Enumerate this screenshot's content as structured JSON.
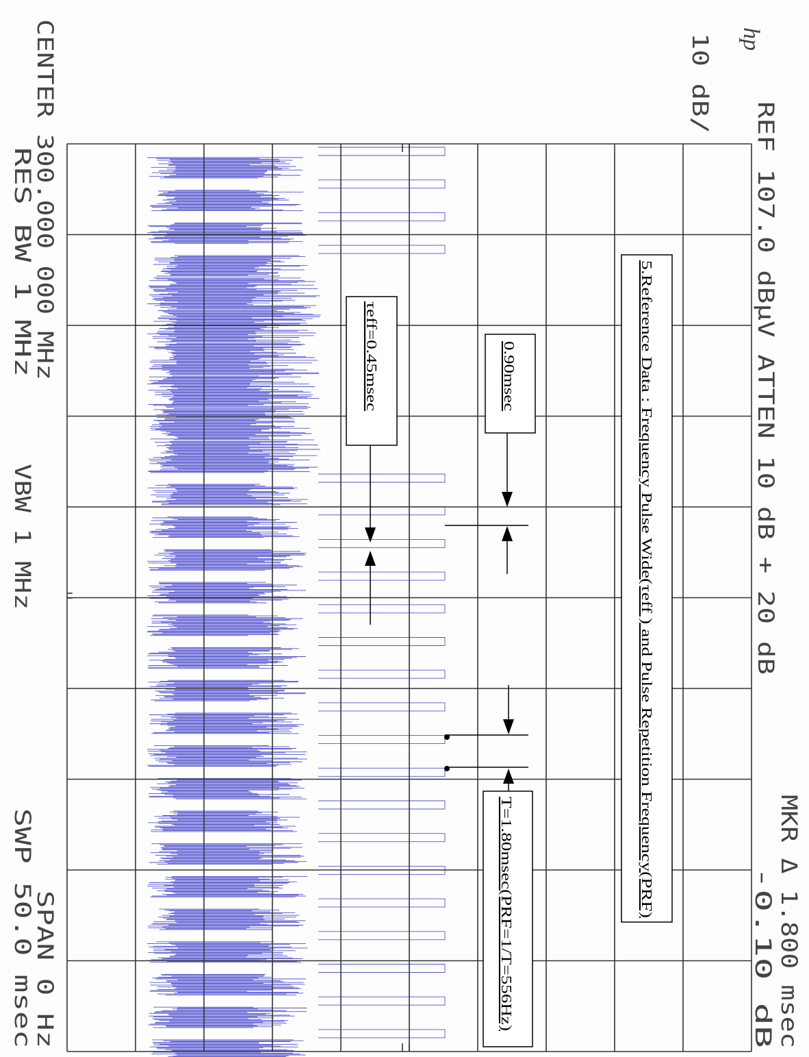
{
  "header": {
    "logo": "hp",
    "scale": "10 dB/",
    "reference": "REF 107.0 dBµV ATTEN 10 dB + 20 dB",
    "marker": "MKR Δ 1.800 msec",
    "marker_level": "-0.10 dB"
  },
  "footer": {
    "center": "CENTER 300.000 000 MHz",
    "res_bw": "RES BW 1 MHz",
    "vbw": "VBW 1 MHz",
    "span": "SPAN 0 Hz",
    "sweep": "SWP 50.0 msec"
  },
  "annotations": {
    "title": "5.Reference Data : Frequency Pulse Wide(τeff ) and Pulse Repetition Frequency(PRF)",
    "width_double": "0.90msec",
    "tau": "τeff=0.45msec",
    "period": "T=1.80msec(PRF=1/T=556Hz)"
  }
}
